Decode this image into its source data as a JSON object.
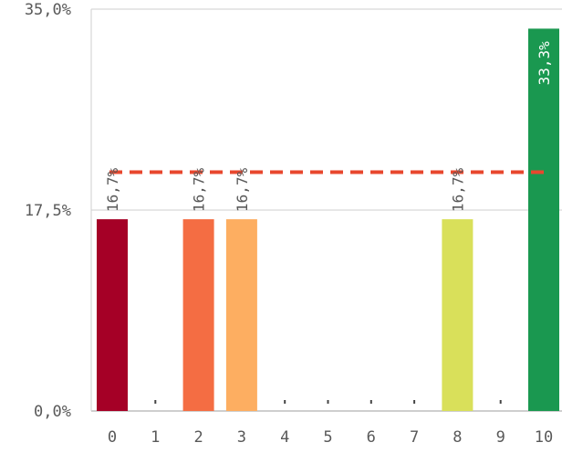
{
  "chart_data": {
    "type": "bar",
    "categories": [
      "0",
      "1",
      "2",
      "3",
      "4",
      "5",
      "6",
      "7",
      "8",
      "9",
      "10"
    ],
    "values": [
      16.7,
      0,
      16.7,
      16.7,
      0,
      0,
      0,
      0,
      16.7,
      0,
      33.3
    ],
    "data_labels": [
      "16,7%",
      "",
      "16,7%",
      "16,7%",
      "",
      "",
      "",
      "",
      "16,7%",
      "",
      "33,3%"
    ],
    "colors": [
      "#a50026",
      "#cccccc",
      "#f46d43",
      "#fdae61",
      "#cccccc",
      "#cccccc",
      "#cccccc",
      "#cccccc",
      "#d9e05a",
      "#cccccc",
      "#1a9850"
    ],
    "y_ticks": [
      0,
      17.5,
      35
    ],
    "y_tick_labels": [
      "0,0%",
      "17,5%",
      "35,0%"
    ],
    "ylim": [
      0,
      35
    ],
    "reference_line": {
      "value": 20.8,
      "color": "#e8472e",
      "style": "dashed"
    },
    "grid": true,
    "legend": "none",
    "title": "",
    "xlabel": "",
    "ylabel": ""
  }
}
